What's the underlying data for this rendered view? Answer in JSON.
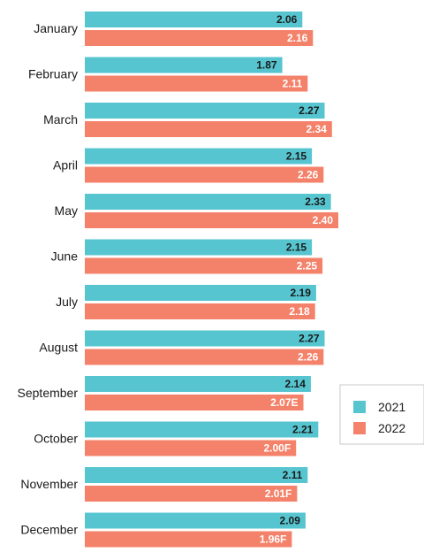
{
  "chart_data": {
    "type": "bar",
    "orientation": "horizontal",
    "categories": [
      "January",
      "February",
      "March",
      "April",
      "May",
      "June",
      "July",
      "August",
      "September",
      "October",
      "November",
      "December"
    ],
    "series": [
      {
        "name": "2021",
        "color": "#56c5d0",
        "label_color": "#1a1a1a",
        "values": [
          2.06,
          1.87,
          2.27,
          2.15,
          2.33,
          2.15,
          2.19,
          2.27,
          2.14,
          2.21,
          2.11,
          2.09
        ],
        "labels": [
          "2.06",
          "1.87",
          "2.27",
          "2.15",
          "2.33",
          "2.15",
          "2.19",
          "2.27",
          "2.14",
          "2.21",
          "2.11",
          "2.09"
        ]
      },
      {
        "name": "2022",
        "color": "#f4826a",
        "label_color": "#ffffff",
        "values": [
          2.16,
          2.11,
          2.34,
          2.26,
          2.4,
          2.25,
          2.18,
          2.26,
          2.07,
          2.0,
          2.01,
          1.96
        ],
        "labels": [
          "2.16",
          "2.11",
          "2.34",
          "2.26",
          "2.40",
          "2.25",
          "2.18",
          "2.26",
          "2.07E",
          "2.00F",
          "2.01F",
          "1.96F"
        ]
      }
    ],
    "xlim": [
      0,
      2.4
    ],
    "grid": false,
    "legend": "right"
  }
}
